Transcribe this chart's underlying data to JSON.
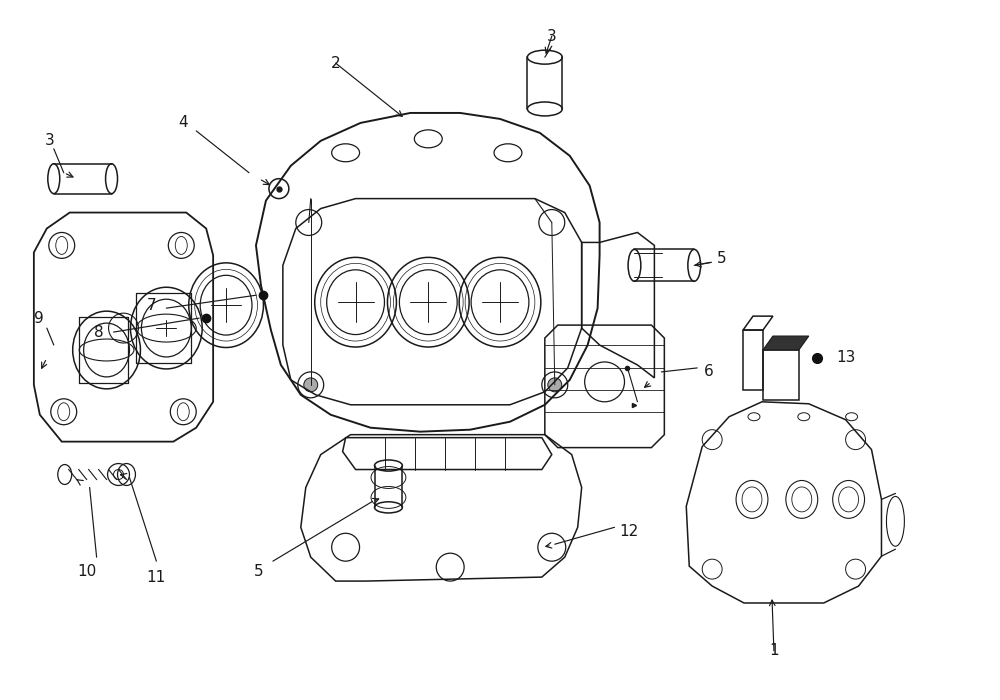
{
  "bg_color": "#ffffff",
  "line_color": "#1a1a1a",
  "fig_width": 10.0,
  "fig_height": 7.0,
  "dpi": 100,
  "label_fs": 11,
  "lw": 1.1
}
